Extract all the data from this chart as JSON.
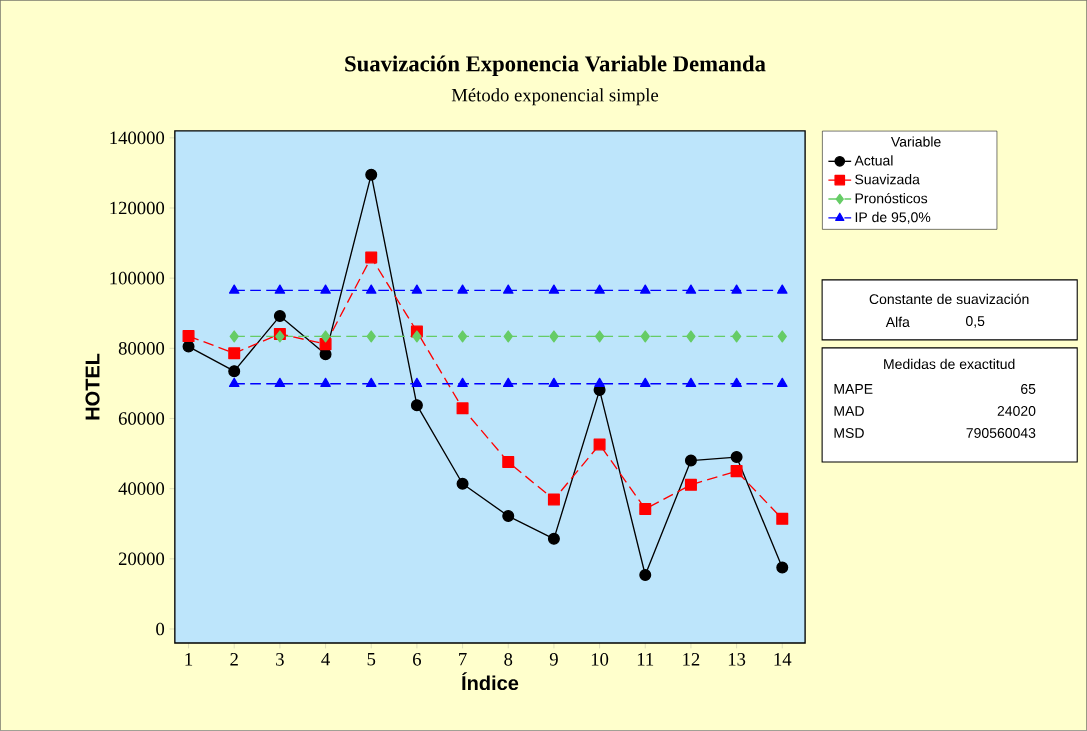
{
  "chart_data": {
    "type": "line",
    "title": "Suavización Exponencia Variable Demanda",
    "subtitle": "Método exponencial simple",
    "xlabel": "Índice",
    "ylabel": "HOTEL",
    "legend_title": "Variable",
    "legend": "right",
    "x": [
      1,
      2,
      3,
      4,
      5,
      6,
      7,
      8,
      9,
      10,
      11,
      12,
      13,
      14
    ],
    "xlim": [
      0.7,
      14.5
    ],
    "xticks": [
      1,
      2,
      3,
      4,
      5,
      6,
      7,
      8,
      9,
      10,
      11,
      12,
      13,
      14
    ],
    "ylim": [
      -4000,
      142000
    ],
    "yticks": [
      0,
      20000,
      40000,
      60000,
      80000,
      100000,
      120000,
      140000
    ],
    "series": [
      {
        "name": "Actual",
        "color": "#000000",
        "marker": "circle",
        "line_style": "solid",
        "values": [
          80500,
          73500,
          89200,
          78300,
          129500,
          63800,
          41400,
          32200,
          25700,
          68100,
          15400,
          48000,
          49000,
          17500
        ]
      },
      {
        "name": "Suavizada",
        "color": "#ff0000",
        "marker": "square",
        "line_style": "dashed",
        "values": [
          83500,
          78600,
          84100,
          81200,
          105900,
          84800,
          62900,
          47600,
          36900,
          52600,
          34200,
          41100,
          45000,
          31400
        ]
      },
      {
        "name": "Pronósticos",
        "color": "#66cc66",
        "marker": "diamond",
        "line_style": "dashed",
        "values": [
          null,
          83400,
          83400,
          83400,
          83400,
          83400,
          83400,
          83400,
          83400,
          83400,
          83400,
          83400,
          83400,
          83400
        ]
      },
      {
        "name": "IP de 95,0%",
        "color": "#0000ff",
        "marker": "triangle",
        "line_style": "dashed",
        "values": [
          null,
          96500,
          96500,
          96500,
          96500,
          96500,
          96500,
          96500,
          96500,
          96500,
          96500,
          96500,
          96500,
          96500
        ]
      },
      {
        "color": "#0000ff",
        "marker": "triangle",
        "line_style": "dashed",
        "values": [
          null,
          69900,
          69900,
          69900,
          69900,
          69900,
          69900,
          69900,
          69900,
          69900,
          69900,
          69900,
          69900,
          69900
        ]
      }
    ],
    "annotations": [
      "Constante de suavización",
      "Alfa",
      "0,5",
      "Medidas de exactitud",
      "MAPE",
      "65",
      "MAD",
      "24020",
      "MSD",
      "790560043"
    ]
  }
}
